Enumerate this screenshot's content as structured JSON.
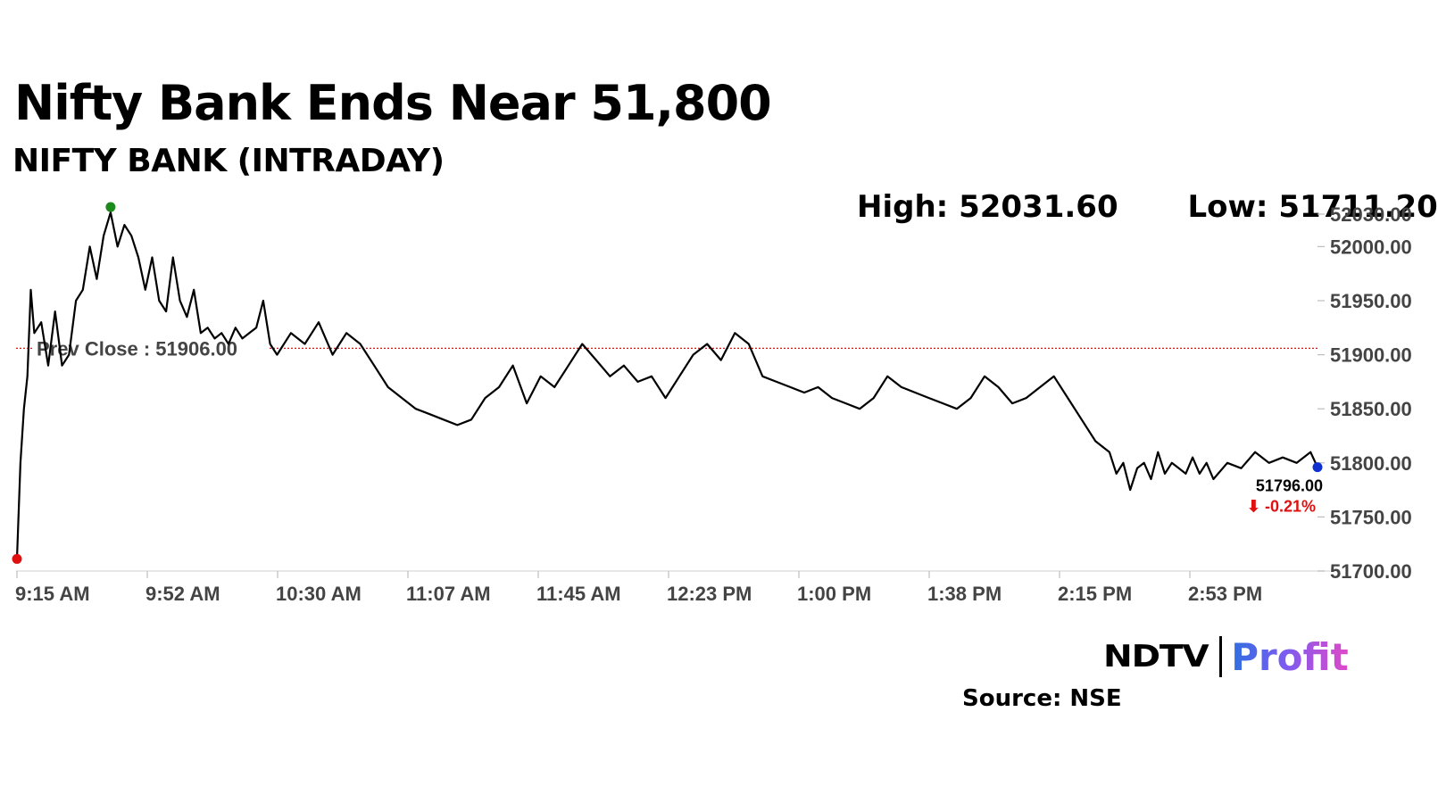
{
  "header": {
    "title": "Nifty Bank Ends Near 51,800",
    "subtitle": "NIFTY BANK (INTRADAY)",
    "high_text": "High: 52031.60",
    "low_text": "Low: 51711.20"
  },
  "chart_data": {
    "type": "line",
    "title": "Nifty Bank Ends Near 51,800",
    "subtitle": "NIFTY BANK (INTRADAY)",
    "xlabel": "",
    "ylabel": "",
    "x_ticks": [
      "9:15 AM",
      "9:52 AM",
      "10:30 AM",
      "11:07 AM",
      "11:45 AM",
      "12:23 PM",
      "1:00 PM",
      "1:38 PM",
      "2:15 PM",
      "2:53 PM"
    ],
    "y_ticks": [
      "51700.00",
      "51750.00",
      "51800.00",
      "51850.00",
      "51900.00",
      "51950.00",
      "52000.00",
      "52030.00"
    ],
    "ylim": [
      51700,
      52030
    ],
    "xlim": [
      "9:15 AM",
      "3:30 PM"
    ],
    "grid": false,
    "series": [
      {
        "color": "#000000",
        "x": [
          "9:15",
          "9:16",
          "9:17",
          "9:18",
          "9:19",
          "9:20",
          "9:22",
          "9:24",
          "9:26",
          "9:28",
          "9:30",
          "9:32",
          "9:34",
          "9:36",
          "9:38",
          "9:40",
          "9:42",
          "9:44",
          "9:46",
          "9:48",
          "9:50",
          "9:52",
          "9:54",
          "9:56",
          "9:58",
          "10:00",
          "10:02",
          "10:04",
          "10:06",
          "10:08",
          "10:10",
          "10:12",
          "10:14",
          "10:16",
          "10:18",
          "10:20",
          "10:22",
          "10:24",
          "10:26",
          "10:28",
          "10:30",
          "10:34",
          "10:38",
          "10:42",
          "10:46",
          "10:50",
          "10:54",
          "10:58",
          "11:02",
          "11:06",
          "11:10",
          "11:14",
          "11:18",
          "11:22",
          "11:26",
          "11:30",
          "11:34",
          "11:38",
          "11:42",
          "11:46",
          "11:50",
          "11:54",
          "11:58",
          "12:02",
          "12:06",
          "12:10",
          "12:14",
          "12:18",
          "12:22",
          "12:26",
          "12:30",
          "12:34",
          "12:38",
          "12:42",
          "12:46",
          "12:50",
          "12:54",
          "12:58",
          "13:02",
          "13:06",
          "13:10",
          "13:14",
          "13:18",
          "13:22",
          "13:26",
          "13:30",
          "13:34",
          "13:38",
          "13:42",
          "13:46",
          "13:50",
          "13:54",
          "13:58",
          "14:02",
          "14:06",
          "14:10",
          "14:14",
          "14:18",
          "14:22",
          "14:26",
          "14:30",
          "14:32",
          "14:34",
          "14:36",
          "14:38",
          "14:40",
          "14:42",
          "14:44",
          "14:46",
          "14:48",
          "14:50",
          "14:52",
          "14:54",
          "14:56",
          "14:58",
          "15:00",
          "15:04",
          "15:08",
          "15:12",
          "15:16",
          "15:20",
          "15:24",
          "15:28",
          "15:30"
        ],
        "values": [
          51711.2,
          51800,
          51850,
          51880,
          51960,
          51920,
          51930,
          51890,
          51940,
          51890,
          51900,
          51950,
          51960,
          52000,
          51970,
          52010,
          52031.6,
          52000,
          52020,
          52010,
          51990,
          51960,
          51990,
          51950,
          51940,
          51990,
          51950,
          51935,
          51960,
          51920,
          51925,
          51915,
          51920,
          51910,
          51925,
          51915,
          51920,
          51925,
          51950,
          51910,
          51900,
          51920,
          51910,
          51930,
          51900,
          51920,
          51910,
          51890,
          51870,
          51860,
          51850,
          51845,
          51840,
          51835,
          51840,
          51860,
          51870,
          51890,
          51855,
          51880,
          51870,
          51890,
          51910,
          51895,
          51880,
          51890,
          51875,
          51880,
          51860,
          51880,
          51900,
          51910,
          51895,
          51920,
          51910,
          51880,
          51875,
          51870,
          51865,
          51870,
          51860,
          51855,
          51850,
          51860,
          51880,
          51870,
          51865,
          51860,
          51855,
          51850,
          51860,
          51880,
          51870,
          51855,
          51860,
          51870,
          51880,
          51860,
          51840,
          51820,
          51810,
          51790,
          51800,
          51775,
          51795,
          51800,
          51785,
          51810,
          51790,
          51800,
          51795,
          51790,
          51805,
          51790,
          51800,
          51785,
          51800,
          51795,
          51810,
          51800,
          51805,
          51800,
          51810,
          51796
        ]
      }
    ],
    "reference_line": {
      "label": "Prev Close : 51906.00",
      "value": 51906.0,
      "color": "#cc0000"
    },
    "high_marker": {
      "value": 52031.6,
      "color": "#1a8a1a"
    },
    "low_marker": {
      "value": 51711.2,
      "color": "#e01010"
    },
    "last_marker": {
      "value": 51796.0,
      "label": "51796.00",
      "change_label": "-0.21%",
      "color": "#1030d0",
      "change_color": "#e01010"
    }
  },
  "footer": {
    "logo_left": "NDTV",
    "logo_right": "Profit",
    "source": "Source: NSE"
  }
}
